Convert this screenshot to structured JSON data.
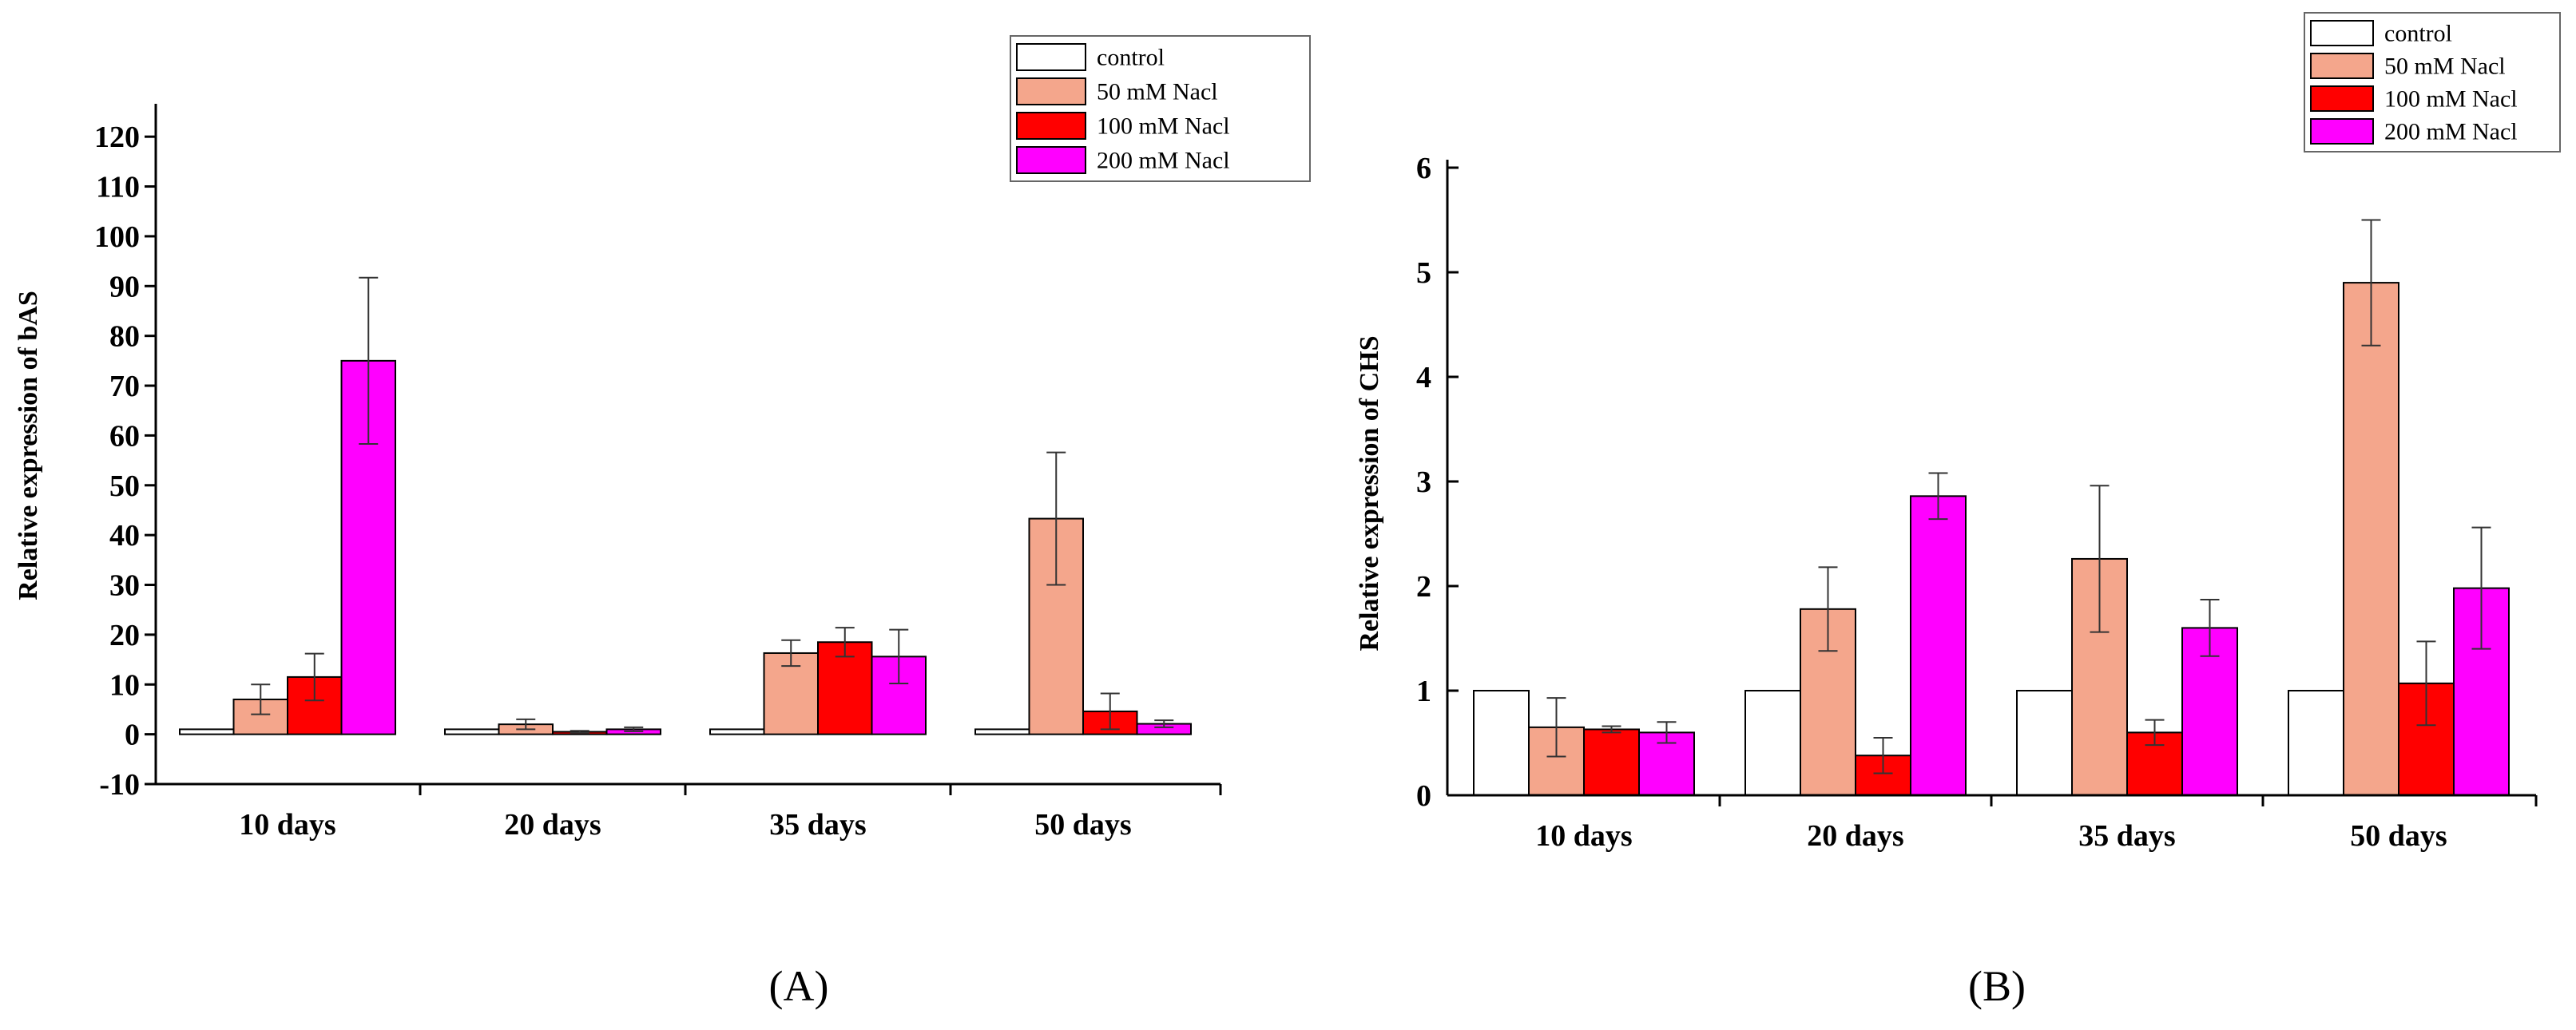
{
  "colors": {
    "control": "#ffffff",
    "nacl_50": "#f4a68c",
    "nacl_100": "#ff0000",
    "nacl_200": "#ff00ff",
    "axis": "#000000"
  },
  "chart_data": [
    {
      "type": "bar",
      "panel_label": "(A)",
      "title": "",
      "xlabel": "",
      "ylabel": "Relative expression of bAS",
      "categories": [
        "10 days",
        "20 days",
        "35 days",
        "50 days"
      ],
      "ylim": [
        -10,
        125
      ],
      "yticks": [
        -10,
        0,
        10,
        20,
        30,
        40,
        50,
        60,
        70,
        80,
        90,
        100,
        110,
        120
      ],
      "legend_position": "top-right",
      "series": [
        {
          "name": "control",
          "color_key": "control",
          "values": [
            1,
            1,
            1,
            1
          ],
          "errors": [
            0,
            0,
            0,
            0
          ]
        },
        {
          "name": "50 mM Nacl",
          "color_key": "nacl_50",
          "values": [
            7,
            2,
            16.3,
            43.3
          ],
          "errors": [
            3,
            1,
            2.6,
            13.3
          ]
        },
        {
          "name": "100 mM Nacl",
          "color_key": "nacl_100",
          "values": [
            11.5,
            0.5,
            18.5,
            4.6
          ],
          "errors": [
            4.7,
            0.2,
            2.9,
            3.6
          ]
        },
        {
          "name": "200 mM Nacl",
          "color_key": "nacl_200",
          "values": [
            75,
            1,
            15.6,
            2.1
          ],
          "errors": [
            16.7,
            0.4,
            5.4,
            0.7
          ]
        }
      ]
    },
    {
      "type": "bar",
      "panel_label": "(B)",
      "title": "",
      "xlabel": "",
      "ylabel": "Relative expression of CHS",
      "categories": [
        "10 days",
        "20 days",
        "35 days",
        "50 days"
      ],
      "ylim": [
        0,
        6
      ],
      "yticks": [
        0,
        1,
        2,
        3,
        4,
        5,
        6
      ],
      "legend_position": "top-right",
      "series": [
        {
          "name": "control",
          "color_key": "control",
          "values": [
            1,
            1,
            1,
            1
          ],
          "errors": [
            0,
            0,
            0,
            0
          ]
        },
        {
          "name": "50 mM Nacl",
          "color_key": "nacl_50",
          "values": [
            0.65,
            1.78,
            2.26,
            4.9
          ],
          "errors": [
            0.28,
            0.4,
            0.7,
            0.6
          ]
        },
        {
          "name": "100 mM Nacl",
          "color_key": "nacl_100",
          "values": [
            0.63,
            0.38,
            0.6,
            1.07
          ],
          "errors": [
            0.03,
            0.17,
            0.12,
            0.4
          ]
        },
        {
          "name": "200 mM Nacl",
          "color_key": "nacl_200",
          "values": [
            0.6,
            2.86,
            1.6,
            1.98
          ],
          "errors": [
            0.1,
            0.22,
            0.27,
            0.58
          ]
        }
      ]
    }
  ]
}
